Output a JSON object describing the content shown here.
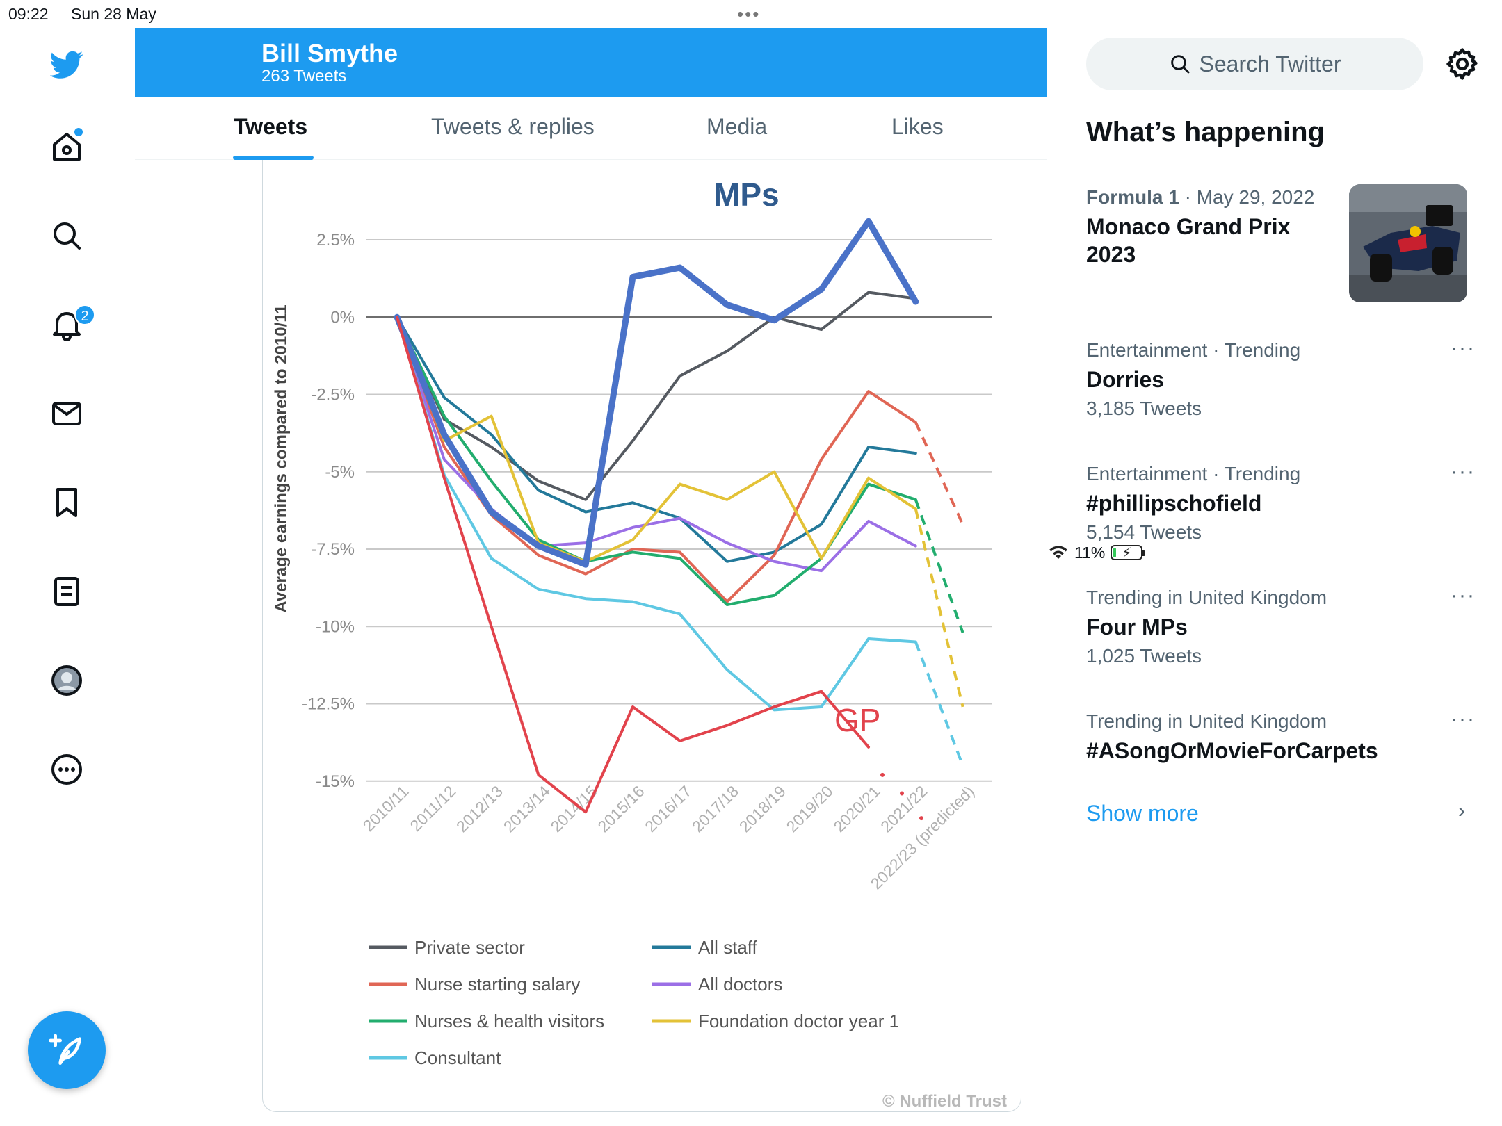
{
  "status": {
    "time": "09:22",
    "date": "Sun 28 May",
    "battery": "11%"
  },
  "nav": {
    "notifications_badge": "2"
  },
  "profile": {
    "name": "Bill Smythe",
    "tweet_count": "263 Tweets"
  },
  "tabs": [
    "Tweets",
    "Tweets & replies",
    "Media",
    "Likes"
  ],
  "search": {
    "placeholder": "Search Twitter"
  },
  "sidebar": {
    "title": "What’s happening",
    "trends": [
      {
        "meta_cat": "Formula 1",
        "meta_rest": " · May 29, 2022",
        "topic": "Monaco Grand Prix 2023",
        "sub": ""
      },
      {
        "meta_cat": "Entertainment · Trending",
        "meta_rest": "",
        "topic": "Dorries",
        "sub": "3,185 Tweets"
      },
      {
        "meta_cat": "Entertainment · Trending",
        "meta_rest": "",
        "topic": "#phillipschofield",
        "sub": "5,154 Tweets"
      },
      {
        "meta_cat": "Trending in United Kingdom",
        "meta_rest": "",
        "topic": "Four MPs",
        "sub": "1,025 Tweets"
      },
      {
        "meta_cat": "Trending in United Kingdom",
        "meta_rest": "",
        "topic": "#ASongOrMovieForCarpets",
        "sub": ""
      }
    ],
    "show_more": "Show more"
  },
  "chart_data": {
    "type": "line",
    "ylabel": "Average earnings compared to 2010/11",
    "ylim": [
      -15,
      2.5
    ],
    "yticks": [
      2.5,
      0,
      -2.5,
      -5,
      -7.5,
      -10,
      -12.5,
      -15
    ],
    "ytick_labels": [
      "2.5%",
      "0%",
      "-2.5%",
      "-5%",
      "-7.5%",
      "-10%",
      "-12.5%",
      "-15%"
    ],
    "categories": [
      "2010/11",
      "2011/12",
      "2012/13",
      "2013/14",
      "2014/15",
      "2015/16",
      "2016/17",
      "2017/18",
      "2018/19",
      "2019/20",
      "2020/21",
      "2021/22",
      "2022/23 (predicted)"
    ],
    "grid": true,
    "legend_position": "bottom",
    "source": "© Nuffield Trust",
    "annotations": [
      "MPs",
      "GP"
    ],
    "series": [
      {
        "name": "Private sector",
        "color": "#555a61",
        "values": [
          0,
          -3.3,
          -4.2,
          -5.3,
          -5.9,
          -4.0,
          -1.9,
          -1.1,
          0.0,
          -0.4,
          0.8,
          0.6,
          null
        ]
      },
      {
        "name": "All staff",
        "color": "#23799a",
        "values": [
          0,
          -2.6,
          -3.8,
          -5.6,
          -6.3,
          -6.0,
          -6.5,
          -7.9,
          -7.6,
          -6.7,
          -4.2,
          -4.4,
          null
        ]
      },
      {
        "name": "Nurse starting salary",
        "color": "#e06655",
        "values": [
          0,
          -4.2,
          -6.4,
          -7.7,
          -8.3,
          -7.5,
          -7.6,
          -9.2,
          -7.7,
          -4.6,
          -2.4,
          -3.4,
          -6.7
        ]
      },
      {
        "name": "All doctors",
        "color": "#9b6fe6",
        "values": [
          0,
          -4.6,
          -6.2,
          -7.4,
          -7.3,
          -6.8,
          -6.5,
          -7.3,
          -7.9,
          -8.2,
          -6.6,
          -7.4,
          null
        ]
      },
      {
        "name": "Nurses & health visitors",
        "color": "#22ad6e",
        "values": [
          0,
          -3.2,
          -5.3,
          -7.2,
          -7.9,
          -7.6,
          -7.8,
          -9.3,
          -9.0,
          -7.8,
          -5.4,
          -5.9,
          -10.2
        ]
      },
      {
        "name": "Foundation doctor year 1",
        "color": "#e3c237",
        "values": [
          0,
          -4.0,
          -3.2,
          -7.3,
          -7.9,
          -7.2,
          -5.4,
          -5.9,
          -5.0,
          -7.8,
          -5.2,
          -6.2,
          -12.6
        ]
      },
      {
        "name": "Consultant",
        "color": "#5fc8e3",
        "values": [
          0,
          -5.1,
          -7.8,
          -8.8,
          -9.1,
          -9.2,
          -9.6,
          -11.4,
          -12.7,
          -12.6,
          -10.4,
          -10.5,
          -14.5
        ]
      },
      {
        "name": "MPs",
        "color": "#4a72c8",
        "values": [
          0,
          -3.8,
          -6.3,
          -7.4,
          -8.0,
          1.3,
          1.6,
          0.4,
          -0.1,
          0.9,
          3.1,
          0.5,
          null
        ]
      },
      {
        "name": "GP",
        "color": "#e2434c",
        "values": [
          0,
          -5.2,
          -10.0,
          -14.8,
          -16.0,
          -12.6,
          -13.7,
          -13.2,
          -12.6,
          -12.1,
          -13.9,
          null,
          null
        ],
        "dotted_tail": [
          -14.8,
          -15.4,
          -16.2
        ]
      }
    ]
  }
}
